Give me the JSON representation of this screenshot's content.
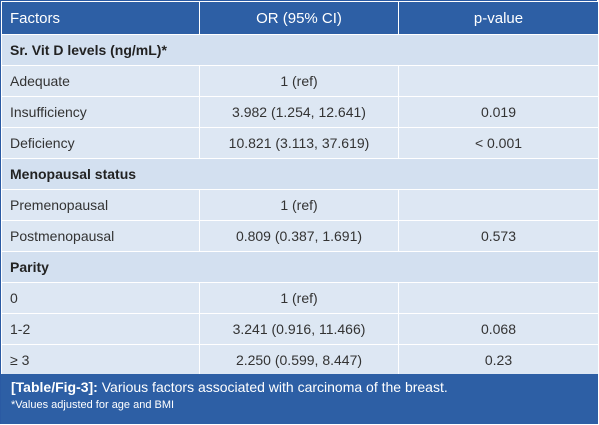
{
  "table": {
    "headers": [
      "Factors",
      "OR (95% CI)",
      "p-value"
    ],
    "rows": [
      {
        "type": "section",
        "label": "Sr. Vit D levels (ng/mL)*"
      },
      {
        "type": "data",
        "label": "Adequate",
        "or": "1 (ref)",
        "p": ""
      },
      {
        "type": "data",
        "label": "Insufficiency",
        "or": "3.982 (1.254, 12.641)",
        "p": "0.019"
      },
      {
        "type": "data",
        "label": "Deficiency",
        "or": "10.821 (3.113, 37.619)",
        "p": "< 0.001"
      },
      {
        "type": "section",
        "label": "Menopausal status"
      },
      {
        "type": "data",
        "label": "Premenopausal",
        "or": "1 (ref)",
        "p": ""
      },
      {
        "type": "data",
        "label": "Postmenopausal",
        "or": "0.809 (0.387, 1.691)",
        "p": "0.573"
      },
      {
        "type": "section",
        "label": "Parity"
      },
      {
        "type": "data",
        "label": "0",
        "or": "1 (ref)",
        "p": ""
      },
      {
        "type": "data",
        "label": "1-2",
        "or": "3.241 (0.916, 11.466)",
        "p": "0.068"
      },
      {
        "type": "data",
        "label": "≥ 3",
        "or": "2.250 (0.599, 8.447)",
        "p": "0.23"
      }
    ]
  },
  "caption": {
    "tag": "[Table/Fig-3]:",
    "text": " Various factors associated with carcinoma of the breast.",
    "note": "*Values adjusted for age and BMI"
  },
  "colors": {
    "header_bg": "#2d5fa5",
    "row_bg": "#dde7f3",
    "section_bg": "#d3e0f0"
  }
}
